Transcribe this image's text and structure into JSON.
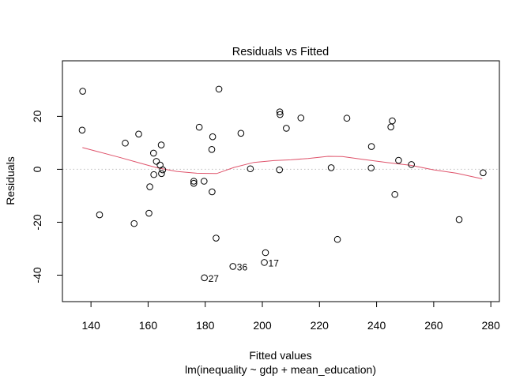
{
  "chart_data": {
    "type": "scatter",
    "title": "Residuals vs Fitted",
    "xlabel": "Fitted values",
    "subtitle": "lm(inequality ~ gdp + mean_education)",
    "ylabel": "Residuals",
    "xlim": [
      130,
      283
    ],
    "ylim": [
      -50,
      41
    ],
    "xticks": [
      140,
      160,
      180,
      200,
      220,
      240,
      260,
      280
    ],
    "yticks": [
      -40,
      -20,
      0,
      20
    ],
    "grid": false,
    "reference_line_y": 0,
    "colors": {
      "points": "#000000",
      "smoother": "#DF536B",
      "reference": "#BEBEBE"
    },
    "points": [
      {
        "x": 137.1,
        "y": 29.5
      },
      {
        "x": 136.9,
        "y": 14.8
      },
      {
        "x": 143.0,
        "y": -17.2
      },
      {
        "x": 152.0,
        "y": 9.9
      },
      {
        "x": 155.1,
        "y": -20.5
      },
      {
        "x": 156.7,
        "y": 13.3
      },
      {
        "x": 160.3,
        "y": -16.6
      },
      {
        "x": 160.6,
        "y": -6.6
      },
      {
        "x": 161.9,
        "y": 6.1
      },
      {
        "x": 162.0,
        "y": -2.0
      },
      {
        "x": 162.9,
        "y": 3.0
      },
      {
        "x": 164.2,
        "y": 1.6
      },
      {
        "x": 164.6,
        "y": 9.2
      },
      {
        "x": 164.7,
        "y": -1.6
      },
      {
        "x": 165.1,
        "y": -0.2
      },
      {
        "x": 176.0,
        "y": -4.5
      },
      {
        "x": 176.0,
        "y": -5.3
      },
      {
        "x": 177.9,
        "y": 15.9
      },
      {
        "x": 179.6,
        "y": -4.5
      },
      {
        "x": 179.7,
        "y": -41.0,
        "label": "27"
      },
      {
        "x": 182.3,
        "y": 7.5
      },
      {
        "x": 182.4,
        "y": -8.5
      },
      {
        "x": 182.6,
        "y": 12.3
      },
      {
        "x": 183.8,
        "y": -26.0
      },
      {
        "x": 184.8,
        "y": 30.3
      },
      {
        "x": 189.7,
        "y": -36.7,
        "label": "36"
      },
      {
        "x": 192.5,
        "y": 13.6
      },
      {
        "x": 195.8,
        "y": 0.2
      },
      {
        "x": 200.7,
        "y": -35.2,
        "label": "17"
      },
      {
        "x": 201.1,
        "y": -31.5
      },
      {
        "x": 206.1,
        "y": 21.7
      },
      {
        "x": 206.2,
        "y": 20.7
      },
      {
        "x": 206.0,
        "y": -0.2
      },
      {
        "x": 208.4,
        "y": 15.5
      },
      {
        "x": 213.5,
        "y": 19.4
      },
      {
        "x": 224.1,
        "y": 0.6
      },
      {
        "x": 226.3,
        "y": -26.5
      },
      {
        "x": 229.6,
        "y": 19.3
      },
      {
        "x": 238.2,
        "y": 8.6
      },
      {
        "x": 238.1,
        "y": 0.5
      },
      {
        "x": 245.0,
        "y": 16.0
      },
      {
        "x": 245.5,
        "y": 18.3
      },
      {
        "x": 246.4,
        "y": -9.5
      },
      {
        "x": 247.7,
        "y": 3.4
      },
      {
        "x": 252.2,
        "y": 1.8
      },
      {
        "x": 268.9,
        "y": -19.0
      },
      {
        "x": 277.3,
        "y": -1.3
      }
    ],
    "smoother": [
      {
        "x": 137,
        "y": 8.2
      },
      {
        "x": 143,
        "y": 6.5
      },
      {
        "x": 150,
        "y": 4.5
      },
      {
        "x": 157,
        "y": 2.4
      },
      {
        "x": 163,
        "y": 0.6
      },
      {
        "x": 170,
        "y": -0.8
      },
      {
        "x": 177,
        "y": -1.5
      },
      {
        "x": 184,
        "y": -1.6
      },
      {
        "x": 190,
        "y": 0.7
      },
      {
        "x": 197,
        "y": 2.6
      },
      {
        "x": 204,
        "y": 3.3
      },
      {
        "x": 210,
        "y": 3.6
      },
      {
        "x": 216,
        "y": 4.1
      },
      {
        "x": 223,
        "y": 4.9
      },
      {
        "x": 228,
        "y": 4.8
      },
      {
        "x": 235,
        "y": 3.8
      },
      {
        "x": 244,
        "y": 2.5
      },
      {
        "x": 252,
        "y": 1.5
      },
      {
        "x": 260,
        "y": -0.2
      },
      {
        "x": 268,
        "y": -1.5
      },
      {
        "x": 277,
        "y": -3.6
      }
    ]
  }
}
